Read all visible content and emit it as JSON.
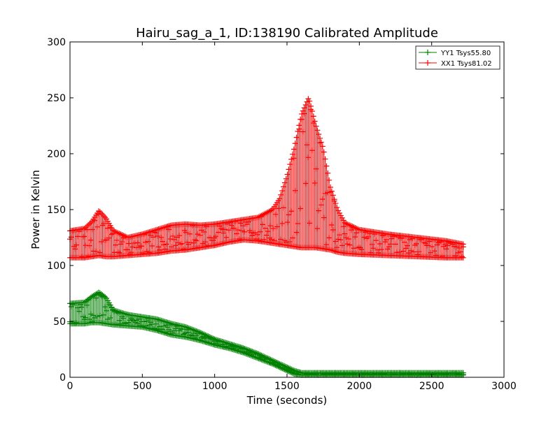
{
  "chart_data": {
    "type": "scatter",
    "title": "Hairu_sag_a_1, ID:138190 Calibrated Amplitude",
    "xlabel": "Time (seconds)",
    "ylabel": "Power in Kelvin",
    "xlim": [
      0,
      3000
    ],
    "ylim": [
      0,
      300
    ],
    "xticks": [
      0,
      500,
      1000,
      1500,
      2000,
      2500,
      3000
    ],
    "yticks": [
      0,
      50,
      100,
      150,
      200,
      250,
      300
    ],
    "grid": false,
    "legend_position": "top-right",
    "marker": "plus",
    "series": [
      {
        "name": "YY1 Tsys55.80",
        "color": "#008000",
        "envelope": {
          "x": [
            0,
            100,
            150,
            200,
            250,
            300,
            400,
            500,
            600,
            700,
            800,
            900,
            1000,
            1100,
            1200,
            1300,
            1400,
            1500,
            1550,
            1600,
            1700,
            2000,
            2500,
            2720
          ],
          "upper": [
            66,
            67,
            72,
            76,
            71,
            60,
            56,
            54,
            52,
            48,
            45,
            40,
            34,
            30,
            26,
            21,
            15,
            9,
            6,
            4,
            4,
            4,
            4,
            4
          ],
          "lower": [
            48,
            48,
            49,
            49,
            48,
            47,
            46,
            45,
            42,
            38,
            36,
            33,
            29,
            26,
            22,
            17,
            12,
            6,
            3,
            2,
            2,
            2,
            2,
            2
          ]
        }
      },
      {
        "name": "XX1 Tsys81.02",
        "color": "#ff0000",
        "envelope": {
          "x": [
            0,
            100,
            150,
            200,
            250,
            300,
            400,
            500,
            600,
            700,
            800,
            900,
            1000,
            1100,
            1200,
            1300,
            1400,
            1450,
            1500,
            1550,
            1600,
            1650,
            1700,
            1750,
            1800,
            1850,
            1900,
            2000,
            2200,
            2400,
            2600,
            2720
          ],
          "upper": [
            131,
            133,
            139,
            149,
            142,
            131,
            125,
            128,
            132,
            136,
            137,
            136,
            137,
            139,
            141,
            143,
            150,
            160,
            180,
            205,
            235,
            250,
            225,
            205,
            170,
            150,
            138,
            132,
            128,
            125,
            122,
            119
          ],
          "lower": [
            107,
            107,
            108,
            109,
            108,
            108,
            109,
            110,
            111,
            113,
            114,
            116,
            118,
            121,
            123,
            122,
            120,
            119,
            118,
            117,
            116,
            116,
            116,
            115,
            114,
            112,
            111,
            110,
            109,
            108,
            107,
            107
          ]
        }
      }
    ]
  }
}
